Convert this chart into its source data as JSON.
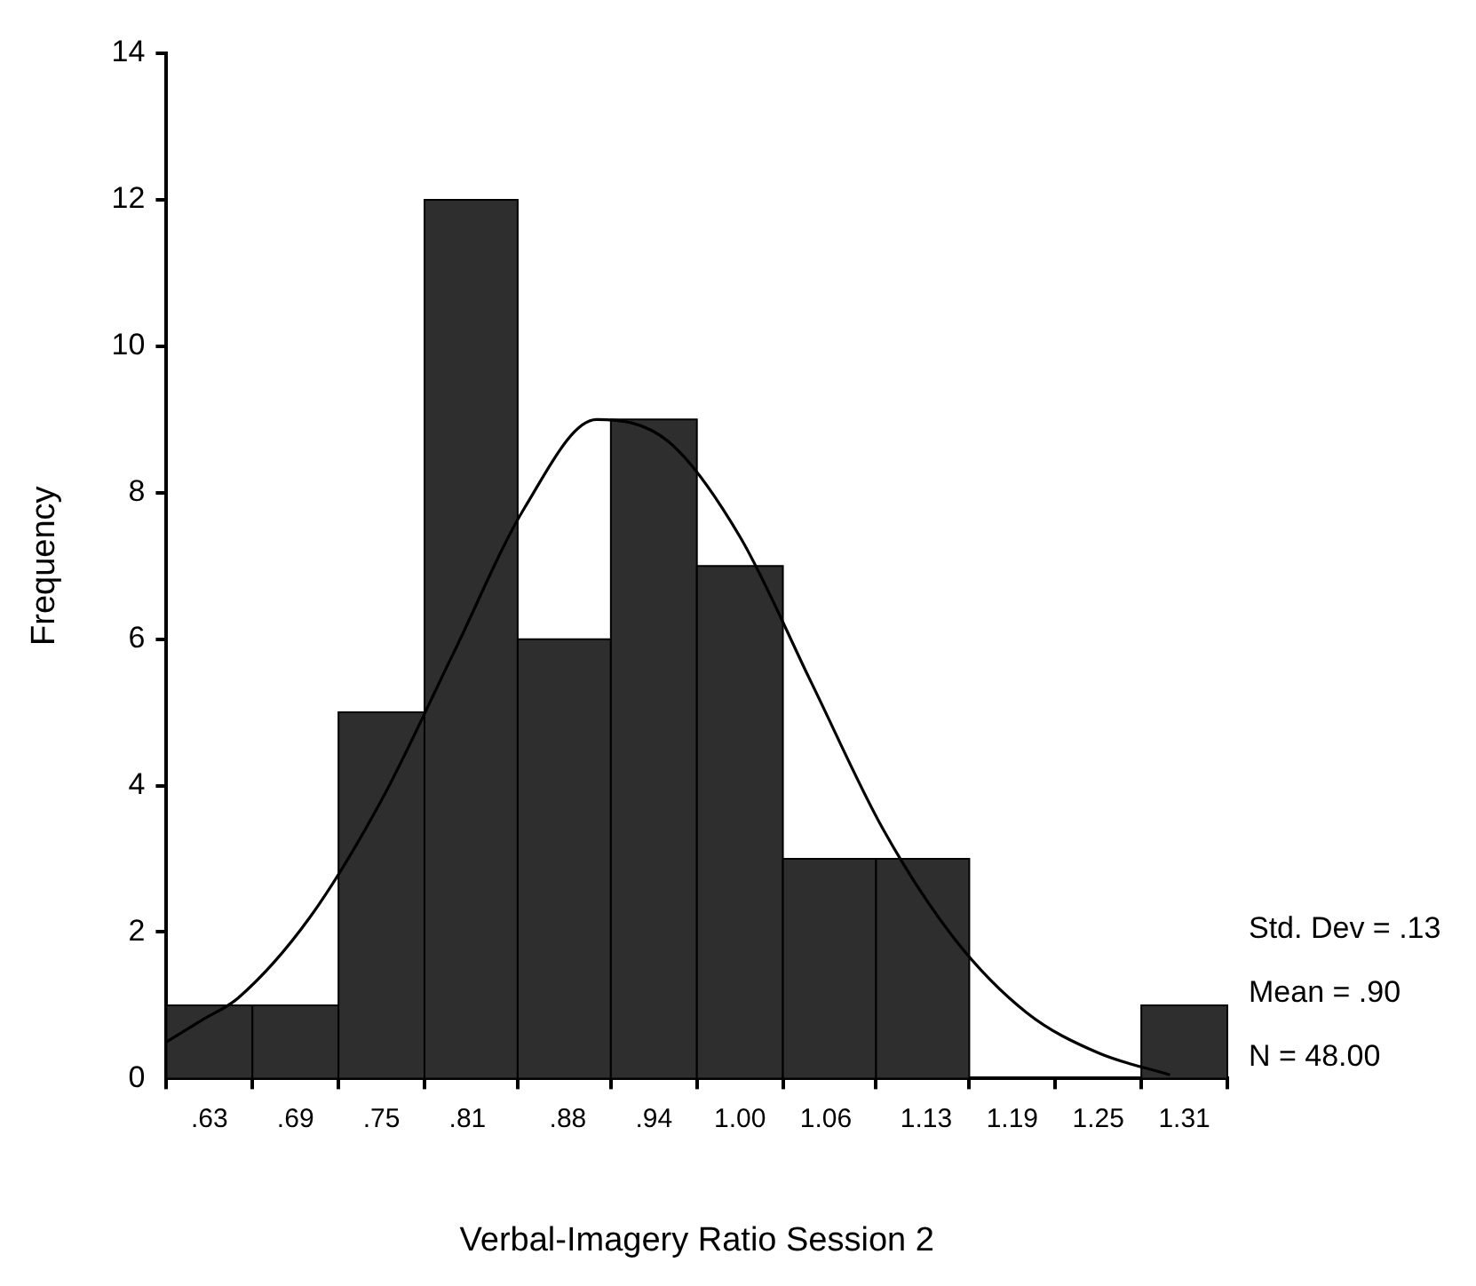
{
  "chart_data": {
    "type": "histogram",
    "xlabel": "Verbal-Imagery Ratio Session 2",
    "ylabel": "Frequency",
    "bins": [
      0.6,
      0.66,
      0.72,
      0.78,
      0.845,
      0.91,
      0.97,
      1.03,
      1.095,
      1.16,
      1.28,
      1.34
    ],
    "values": [
      1,
      1,
      5,
      12,
      6,
      9,
      7,
      3,
      3,
      0,
      1
    ],
    "color": "#2e2e2e",
    "series": [
      {
        "type": "line",
        "color": "#000000",
        "x": [
          0.6,
          0.625,
          0.65,
          0.7,
          0.75,
          0.8,
          0.85,
          0.9,
          0.95,
          1.0,
          1.05,
          1.1,
          1.15,
          1.2,
          1.25,
          1.3
        ],
        "values": [
          0.5,
          0.8,
          1.1,
          2.2,
          3.8,
          5.8,
          7.8,
          9.0,
          8.7,
          7.4,
          5.4,
          3.4,
          1.9,
          0.9,
          0.35,
          0.05
        ]
      }
    ],
    "xlim": [
      0.6,
      1.34
    ],
    "xticks": [
      {
        "value": 0.63,
        "label": ".63"
      },
      {
        "value": 0.69,
        "label": ".69"
      },
      {
        "value": 0.75,
        "label": ".75"
      },
      {
        "value": 0.81,
        "label": ".81"
      },
      {
        "value": 0.88,
        "label": ".88"
      },
      {
        "value": 0.94,
        "label": ".94"
      },
      {
        "value": 1.0,
        "label": "1.00"
      },
      {
        "value": 1.06,
        "label": "1.06"
      },
      {
        "value": 1.13,
        "label": "1.13"
      },
      {
        "value": 1.19,
        "label": "1.19"
      },
      {
        "value": 1.25,
        "label": "1.25"
      },
      {
        "value": 1.31,
        "label": "1.31"
      }
    ],
    "ylim": [
      0,
      14
    ],
    "yticks": [
      0,
      2,
      4,
      6,
      8,
      10,
      12,
      14
    ],
    "grid": false,
    "legend": false,
    "marker": "none",
    "line_style": "solid",
    "annotations": [
      "Std. Dev = .13",
      "Mean = .90",
      "N = 48.00"
    ]
  }
}
